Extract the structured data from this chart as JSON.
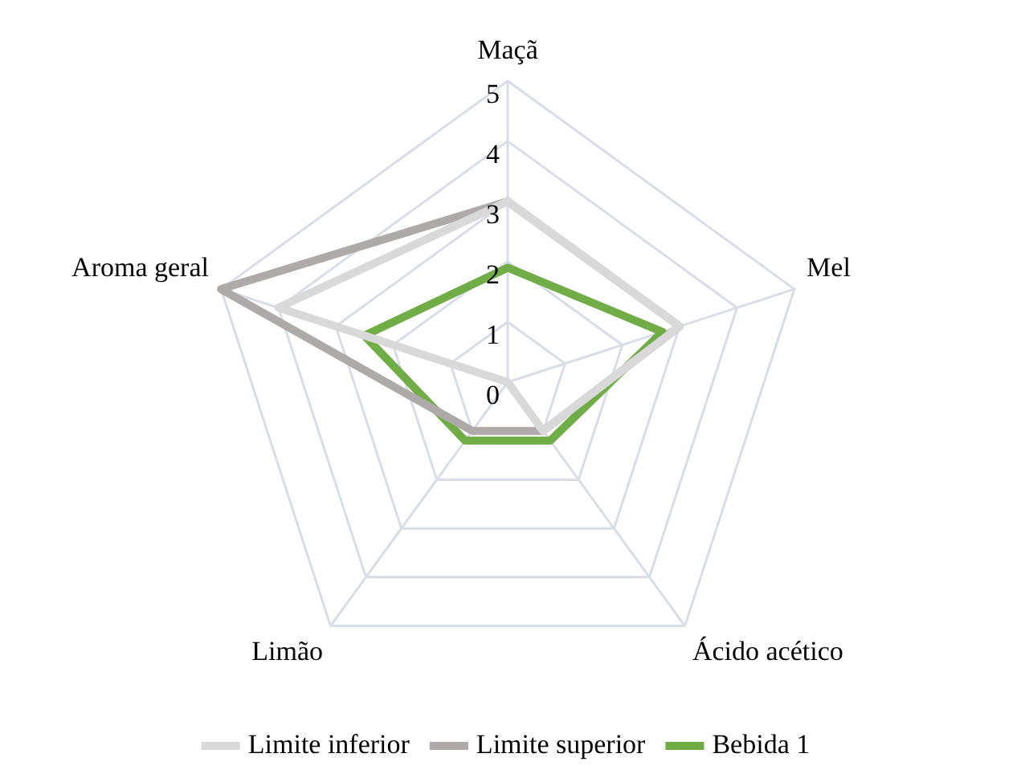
{
  "chart_data": {
    "type": "radar",
    "categories": [
      "Maçã",
      "Mel",
      "Ácido acético",
      "Limão",
      "Aroma geral"
    ],
    "series": [
      {
        "name": "Limite inferior",
        "color": "#d9d9d9",
        "values": [
          3,
          3,
          1,
          0,
          4
        ]
      },
      {
        "name": "Limite superior",
        "color": "#aeaaaa",
        "values": [
          3,
          3,
          1,
          1,
          5
        ]
      },
      {
        "name": "Bebida 1",
        "color": "#70ad47",
        "values": [
          1.9,
          2.7,
          1.2,
          1.2,
          2.5
        ]
      }
    ],
    "ylim": [
      0,
      5
    ],
    "yticks": [
      0,
      1,
      2,
      3,
      4,
      5
    ],
    "grid": true,
    "legend": "bottom",
    "marker": "none"
  }
}
